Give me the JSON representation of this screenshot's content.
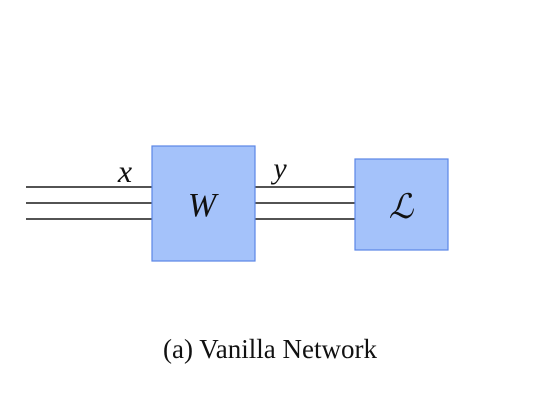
{
  "colors": {
    "block_fill": "#a4c2fa",
    "block_stroke": "#5b86e5",
    "wire": "#1a1a1a"
  },
  "diagram": {
    "input_label": "x",
    "output_label": "y",
    "layer_label": "W",
    "loss_label": "ℒ",
    "caption": "(a) Vanilla Network"
  }
}
